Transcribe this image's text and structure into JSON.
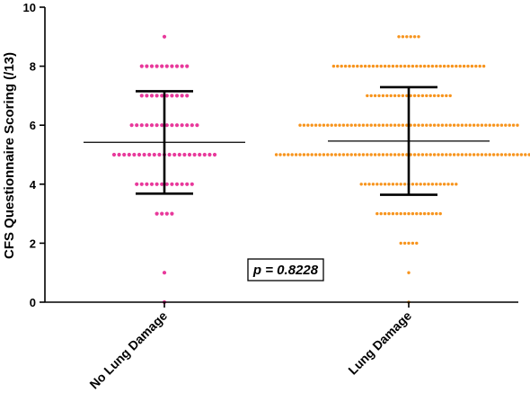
{
  "chart_data": {
    "type": "scatter",
    "ylabel": "CFS Questionnaire Scoring (/13)",
    "ylim": [
      0,
      10
    ],
    "yticks": [
      "0",
      "2",
      "4",
      "6",
      "8",
      "10"
    ],
    "categories": [
      "No Lung Damage",
      "Lung Damage"
    ],
    "annotation": "p = 0.8228",
    "colors": {
      "No Lung Damage": "#e8399b",
      "Lung Damage": "#f7941d",
      "stats": "#000000"
    },
    "series": [
      {
        "name": "No Lung Damage",
        "counts": {
          "0": 1,
          "1": 1,
          "3": 4,
          "4": 12,
          "5": 21,
          "6": 14,
          "7": 10,
          "8": 10,
          "9": 1
        },
        "mean": 5.42,
        "sd_low": 3.68,
        "sd_high": 7.15
      },
      {
        "name": "Lung Damage",
        "counts": {
          "0": 1,
          "1": 1,
          "2": 5,
          "3": 17,
          "4": 25,
          "5": 68,
          "6": 56,
          "7": 22,
          "8": 39,
          "9": 6
        },
        "mean": 5.46,
        "sd_low": 3.64,
        "sd_high": 7.29
      }
    ]
  }
}
